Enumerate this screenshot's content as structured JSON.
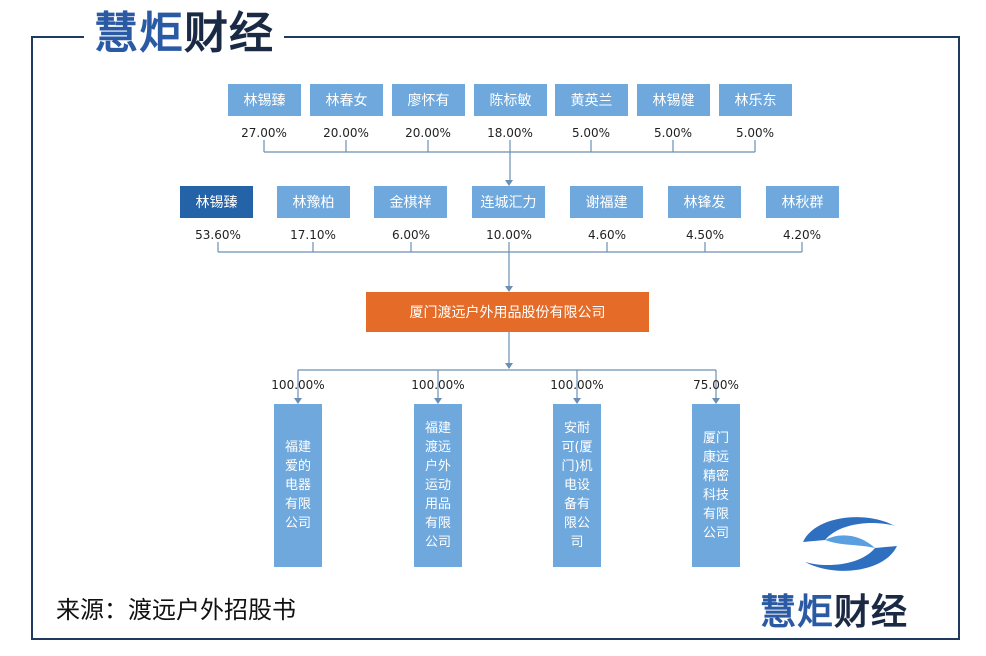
{
  "brand": {
    "part1": "慧炬",
    "part2": "财经"
  },
  "tier1": [
    {
      "name": "林锡臻",
      "pct": "27.00%"
    },
    {
      "name": "林春女",
      "pct": "20.00%"
    },
    {
      "name": "廖怀有",
      "pct": "20.00%"
    },
    {
      "name": "陈标敏",
      "pct": "18.00%"
    },
    {
      "name": "黄英兰",
      "pct": "5.00%"
    },
    {
      "name": "林锡健",
      "pct": "5.00%"
    },
    {
      "name": "林乐东",
      "pct": "5.00%"
    }
  ],
  "tier2": [
    {
      "name": "林锡臻",
      "pct": "53.60%"
    },
    {
      "name": "林豫柏",
      "pct": "17.10%"
    },
    {
      "name": "金棋祥",
      "pct": "6.00%"
    },
    {
      "name": "连城汇力",
      "pct": "10.00%"
    },
    {
      "name": "谢福建",
      "pct": "4.60%"
    },
    {
      "name": "林锋发",
      "pct": "4.50%"
    },
    {
      "name": "林秋群",
      "pct": "4.20%"
    }
  ],
  "company": "厦门渡远户外用品股份有限公司",
  "subsidiaries": [
    {
      "name": "福建爱的电器有限公司",
      "pct": "100.00%"
    },
    {
      "name": "福建渡远户外运动用品有限公司",
      "pct": "100.00%"
    },
    {
      "name": "安耐可(厦门)机电设备有限公司",
      "pct": "100.00%"
    },
    {
      "name": "厦门康远精密科技有限公司",
      "pct": "75.00%"
    }
  ],
  "source": "来源：渡远户外招股书",
  "colors": {
    "box": "#6fa8dc",
    "highlight": "#2563a8",
    "company": "#e46c28",
    "line": "#6a8fb5"
  }
}
